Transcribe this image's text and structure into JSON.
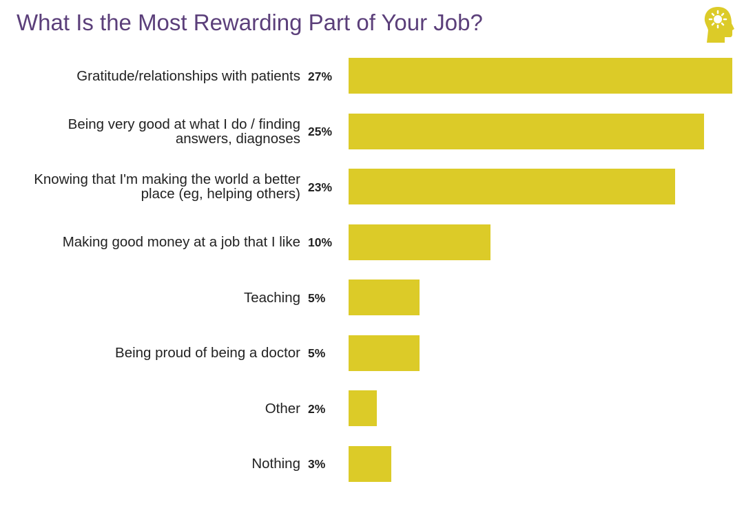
{
  "chart_data": {
    "type": "bar",
    "orientation": "horizontal",
    "title": "What Is the Most Rewarding Part of Your Job?",
    "categories": [
      "Gratitude/relationships with patients",
      "Being very good at what I do / finding answers, diagnoses",
      "Knowing that I'm making the world a better place (eg, helping others)",
      "Making good money at a job that I like",
      "Teaching",
      "Being proud of being a doctor",
      "Other",
      "Nothing"
    ],
    "values": [
      27,
      25,
      23,
      10,
      5,
      5,
      2,
      3
    ],
    "value_labels": [
      "27%",
      "25%",
      "23%",
      "10%",
      "5%",
      "5%",
      "2%",
      "3%"
    ],
    "color": "#dccb28"
  }
}
